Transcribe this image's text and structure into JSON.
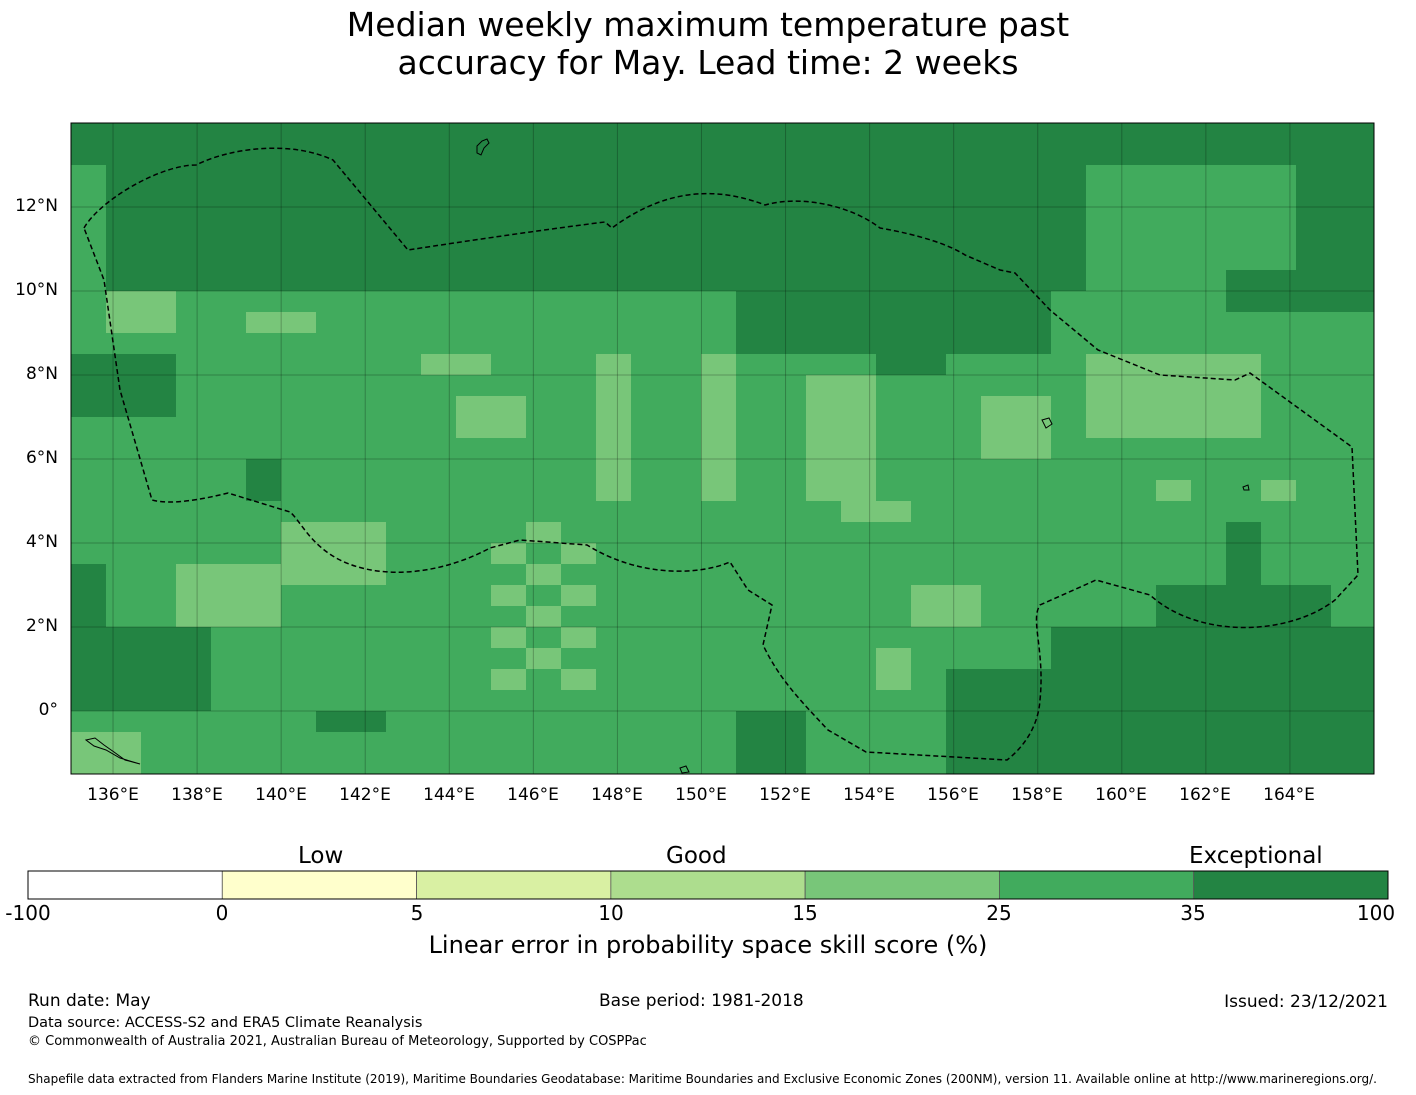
{
  "title": {
    "line1": "Median weekly maximum temperature past",
    "line2": "accuracy for May. Lead time: 2 weeks"
  },
  "chart_data": {
    "type": "heatmap",
    "lon_ticks": [
      "136°E",
      "138°E",
      "140°E",
      "142°E",
      "144°E",
      "146°E",
      "148°E",
      "150°E",
      "152°E",
      "154°E",
      "156°E",
      "158°E",
      "160°E",
      "162°E",
      "164°E"
    ],
    "lat_ticks": [
      "12°N",
      "10°N",
      "8°N",
      "6°N",
      "4°N",
      "2°N",
      "0°"
    ],
    "lon_range": [
      135.0,
      166.0
    ],
    "lat_range": [
      -1.5,
      14.0
    ],
    "colorbar": {
      "bounds": [
        "-100",
        "0",
        "5",
        "10",
        "15",
        "25",
        "35",
        "100"
      ],
      "colors": [
        "#ffffff",
        "#ffffcc",
        "#d9f0a3",
        "#addd8e",
        "#78c679",
        "#41ab5d",
        "#238443"
      ],
      "categories": [
        "Low",
        "Good",
        "Exceptional"
      ],
      "label": "Linear error in probability space skill score (%)"
    },
    "grid": true,
    "legend_position": "bottom"
  },
  "footer": {
    "run_date": "Run date: May",
    "base_period": "Base period: 1981-2018",
    "issued": "Issued: 23/12/2021",
    "data_source": "Data source: ACCESS-S2 and ERA5 Climate Reanalysis",
    "copyright": "© Commonwealth of Australia 2021, Australian Bureau of Meteorology, Supported by COSPPac",
    "shapefile": "Shapefile data extracted from Flanders Marine Institute (2019), Maritime Boundaries Geodatabase: Maritime Boundaries and Exclusive Economic Zones (200NM), version 11. Available online at http://www.marineregions.org/."
  }
}
